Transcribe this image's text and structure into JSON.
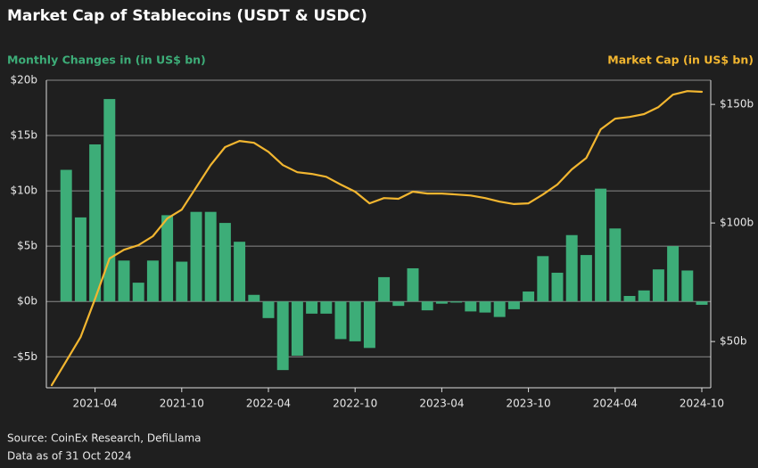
{
  "chart_data": {
    "type": "bar",
    "title": "Market Cap of Stablecoins (USDT & USDC)",
    "y_label": "Monthly Changes in (in US$ bn)",
    "y2_label": "Market Cap (in US$ bn)",
    "source": "Source: CoinEx Research, DefiLlama",
    "note": "Data as of 31 Oct 2024",
    "x": [
      "2021-01",
      "2021-02",
      "2021-03",
      "2021-04",
      "2021-05",
      "2021-06",
      "2021-07",
      "2021-08",
      "2021-09",
      "2021-10",
      "2021-11",
      "2021-12",
      "2022-01",
      "2022-02",
      "2022-03",
      "2022-04",
      "2022-05",
      "2022-06",
      "2022-07",
      "2022-08",
      "2022-09",
      "2022-10",
      "2022-11",
      "2022-12",
      "2023-01",
      "2023-02",
      "2023-03",
      "2023-04",
      "2023-05",
      "2023-06",
      "2023-07",
      "2023-08",
      "2023-09",
      "2023-10",
      "2023-11",
      "2023-12",
      "2024-01",
      "2024-02",
      "2024-03",
      "2024-04",
      "2024-05",
      "2024-06",
      "2024-07",
      "2024-08",
      "2024-09",
      "2024-10"
    ],
    "xticks": [
      "2021-04",
      "2021-10",
      "2022-04",
      "2022-10",
      "2023-04",
      "2023-10",
      "2024-04",
      "2024-10"
    ],
    "series": [
      {
        "type": "bar",
        "color": "#3dad78",
        "values": [
          null,
          11.9,
          7.6,
          14.2,
          18.3,
          3.7,
          1.7,
          3.7,
          7.8,
          3.6,
          8.1,
          8.1,
          7.1,
          5.4,
          0.6,
          -1.5,
          -6.2,
          -4.9,
          -1.1,
          -1.1,
          -3.4,
          -3.6,
          -4.2,
          2.2,
          -0.4,
          3.0,
          -0.8,
          -0.2,
          -0.1,
          -0.9,
          -1.0,
          -1.4,
          -0.7,
          0.9,
          4.1,
          2.6,
          6.0,
          4.2,
          10.2,
          6.6,
          0.5,
          1.0,
          2.9,
          5.0,
          2.8,
          -0.3
        ]
      },
      {
        "type": "line",
        "axis": "y2",
        "color": "#f2b630",
        "values": [
          31.6,
          41.7,
          51.9,
          68,
          85,
          88.7,
          90.6,
          94.4,
          101.9,
          105.6,
          115,
          124.4,
          132,
          134.6,
          133.8,
          130,
          124.4,
          121.4,
          120.7,
          119.5,
          116.2,
          113.2,
          108.3,
          110.5,
          110.2,
          113.2,
          112.4,
          112.4,
          112,
          111.6,
          110.5,
          109,
          108,
          108.3,
          112,
          116.2,
          122.6,
          127.4,
          139.5,
          144,
          144.7,
          145.9,
          148.9,
          154.1,
          155.6,
          155.3
        ]
      }
    ],
    "ylim": [
      -7.8,
      20
    ],
    "yticks": [
      {
        "value": -5,
        "label": "-$5b"
      },
      {
        "value": 0,
        "label": "$0b"
      },
      {
        "value": 5,
        "label": "$5b"
      },
      {
        "value": 10,
        "label": "$10b"
      },
      {
        "value": 15,
        "label": "$15b"
      },
      {
        "value": 20,
        "label": "$20b"
      }
    ],
    "y2lim": [
      30.5,
      160.2
    ],
    "y2ticks": [
      {
        "value": 50,
        "label": "$50b"
      },
      {
        "value": 100,
        "label": "$100b"
      },
      {
        "value": 150,
        "label": "$150b"
      }
    ],
    "grid": true
  }
}
